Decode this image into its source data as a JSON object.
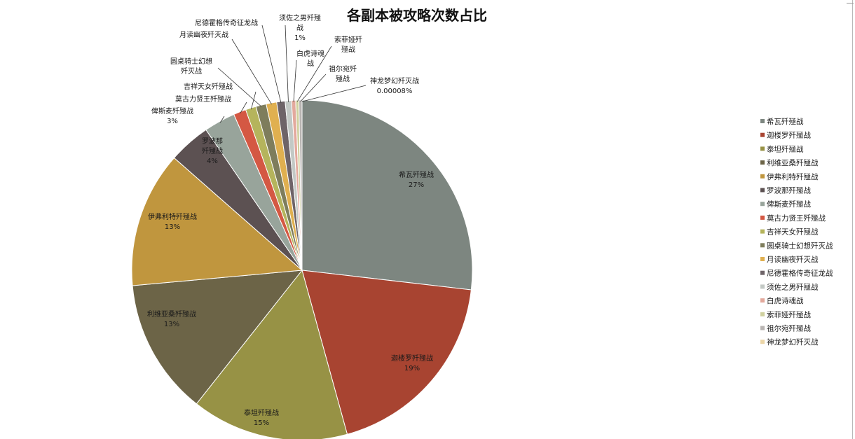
{
  "chart_data": {
    "type": "pie",
    "title": "各副本被攻略次数占比",
    "legend_position": "right",
    "slices": [
      {
        "name": "希瓦歼殛战",
        "value": 27,
        "color": "#7d8680",
        "label_text": "希瓦歼殛战",
        "pct_text": "27%"
      },
      {
        "name": "迦楼罗歼殛战",
        "value": 19,
        "color": "#a84431",
        "label_text": "迦楼罗歼殛战",
        "pct_text": "19%"
      },
      {
        "name": "泰坦歼殛战",
        "value": 15,
        "color": "#979245",
        "label_text": "泰坦歼殛战",
        "pct_text": "15%"
      },
      {
        "name": "利维亚桑歼殛战",
        "value": 13,
        "color": "#6c6447",
        "label_text": "利维亚桑歼殛战",
        "pct_text": "13%"
      },
      {
        "name": "伊弗利特歼殛战",
        "value": 13,
        "color": "#c0963e",
        "label_text": "伊弗利特歼殛战",
        "pct_text": "13%"
      },
      {
        "name": "罗波那歼殛战",
        "value": 4,
        "color": "#5c5152",
        "label_text": "罗波那\n歼殛战",
        "pct_text": "4%"
      },
      {
        "name": "俾斯麦歼殛战",
        "value": 3,
        "color": "#98a49b",
        "label_text": "俾斯麦歼殛战",
        "pct_text": "3%"
      },
      {
        "name": "莫古力贤王歼殛战",
        "value": 1.2,
        "color": "#d45843",
        "label_text": "莫古力贤王歼殛战",
        "pct_text": ""
      },
      {
        "name": "吉祥天女歼殛战",
        "value": 1.0,
        "color": "#b5b45c",
        "label_text": "吉祥天女歼殛战",
        "pct_text": ""
      },
      {
        "name": "圆桌骑士幻想歼灭战",
        "value": 1.0,
        "color": "#7e7d5c",
        "label_text": "圆桌骑士幻想\n歼灭战",
        "pct_text": ""
      },
      {
        "name": "月读幽夜歼灭战",
        "value": 1.0,
        "color": "#e0b050",
        "label_text": "月读幽夜歼灭战",
        "pct_text": ""
      },
      {
        "name": "尼德霍格传奇征龙战",
        "value": 0.8,
        "color": "#6e6468",
        "label_text": "尼德霍格传奇征龙战",
        "pct_text": ""
      },
      {
        "name": "须佐之男歼殛战",
        "value": 0.6,
        "color": "#c3c9c5",
        "label_text": "须佐之男歼殛\n战",
        "pct_text": "1%"
      },
      {
        "name": "白虎诗魂战",
        "value": 0.4,
        "color": "#e3a99d",
        "label_text": "白虎诗魂\n战",
        "pct_text": ""
      },
      {
        "name": "索菲娅歼殛战",
        "value": 0.3,
        "color": "#cfd09e",
        "label_text": "索菲娅歼\n殛战",
        "pct_text": ""
      },
      {
        "name": "祖尔宛歼殛战",
        "value": 0.3,
        "color": "#b8b4b2",
        "label_text": "祖尔宛歼\n殛战",
        "pct_text": ""
      },
      {
        "name": "神龙梦幻歼灭战",
        "value": 8e-05,
        "color": "#ecd6a8",
        "label_text": "神龙梦幻歼灭战",
        "pct_text": "0.00008%"
      }
    ]
  }
}
